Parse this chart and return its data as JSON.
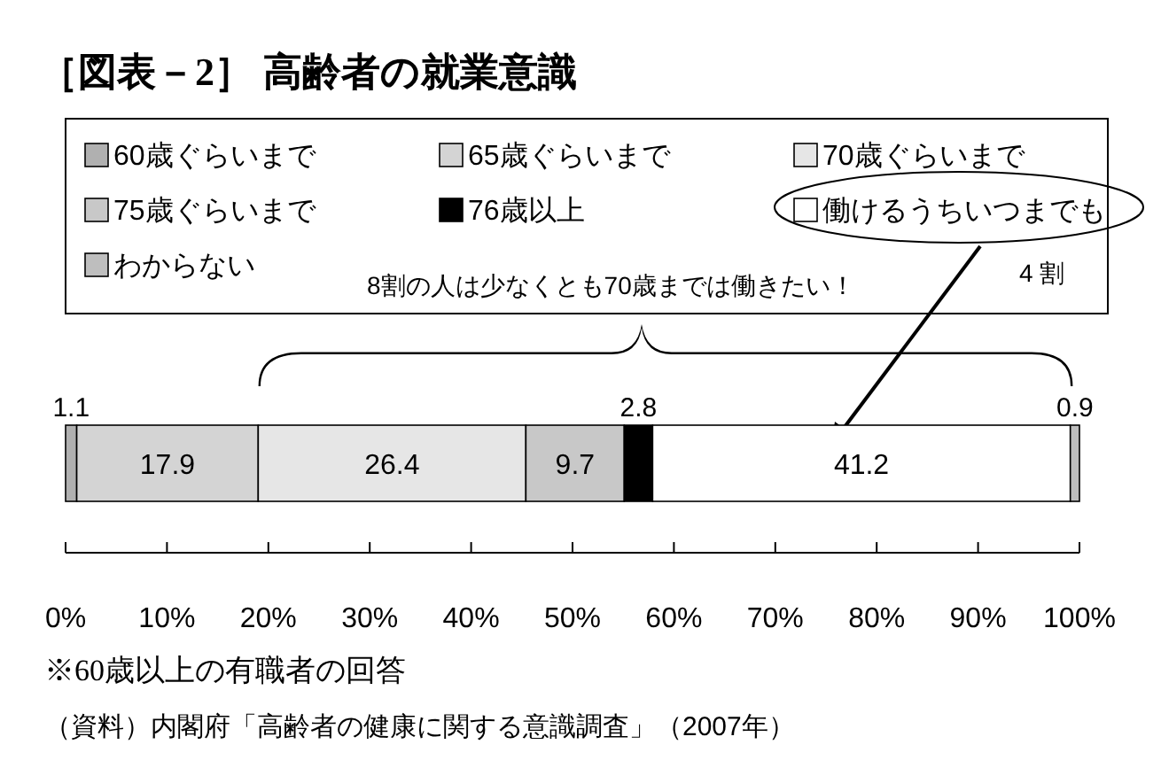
{
  "chart_data": {
    "type": "bar",
    "orientation": "horizontal",
    "stacked": true,
    "title": "［図表－2］ 高齢者の就業意識",
    "categories": [
      null
    ],
    "series": [
      {
        "name": "60歳ぐらいまで",
        "color": "#b0b0b0",
        "values": [
          1.1
        ]
      },
      {
        "name": "65歳ぐらいまで",
        "color": "#d4d4d4",
        "values": [
          17.9
        ]
      },
      {
        "name": "70歳ぐらいまで",
        "color": "#e6e6e6",
        "values": [
          26.4
        ]
      },
      {
        "name": "75歳ぐらいまで",
        "color": "#c8c8c8",
        "values": [
          9.7
        ]
      },
      {
        "name": "76歳以上",
        "color": "#000000",
        "values": [
          2.8
        ]
      },
      {
        "name": "働けるうちいつまでも",
        "color": "#ffffff",
        "values": [
          41.2
        ]
      },
      {
        "name": "わからない",
        "color": "#bebebe",
        "values": [
          0.9
        ]
      }
    ],
    "xlim": [
      0,
      100
    ],
    "xticks": [
      {
        "value": 0,
        "label": "0%"
      },
      {
        "value": 10,
        "label": "10%"
      },
      {
        "value": 20,
        "label": "20%"
      },
      {
        "value": 30,
        "label": "30%"
      },
      {
        "value": 40,
        "label": "40%"
      },
      {
        "value": 50,
        "label": "50%"
      },
      {
        "value": 60,
        "label": "60%"
      },
      {
        "value": 70,
        "label": "70%"
      },
      {
        "value": 80,
        "label": "80%"
      },
      {
        "value": 90,
        "label": "90%"
      },
      {
        "value": 100,
        "label": "100%"
      }
    ],
    "data_labels": true,
    "legend": "top",
    "grid": false,
    "annotations": [
      "8割の人は少なくとも70歳までは働きたい！",
      "4 割",
      "※60歳以上の有職者の回答",
      "（資料）内閣府「高齢者の健康に関する意識調査」（2007年）"
    ]
  }
}
